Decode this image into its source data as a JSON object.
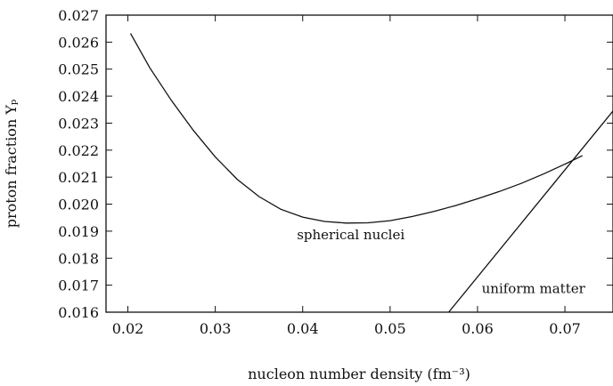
{
  "chart_data": {
    "type": "line",
    "title": "",
    "xlabel": "nucleon number density (fm⁻³)",
    "ylabel": "proton fraction Yₚ",
    "xlim": [
      0.0175,
      0.0755
    ],
    "ylim": [
      0.016,
      0.027
    ],
    "x_ticks": [
      0.02,
      0.03,
      0.04,
      0.05,
      0.06,
      0.07
    ],
    "x_tick_labels": [
      "0.02",
      "0.03",
      "0.04",
      "0.05",
      "0.06",
      "0.07"
    ],
    "y_ticks": [
      0.016,
      0.017,
      0.018,
      0.019,
      0.02,
      0.021,
      0.022,
      0.023,
      0.024,
      0.025,
      0.026,
      0.027
    ],
    "y_tick_labels": [
      "0.016",
      "0.017",
      "0.018",
      "0.019",
      "0.020",
      "0.021",
      "0.022",
      "0.023",
      "0.024",
      "0.025",
      "0.026",
      "0.027"
    ],
    "grid": false,
    "legend": false,
    "series": [
      {
        "label": "spherical nuclei",
        "x": [
          0.0203,
          0.0225,
          0.025,
          0.0275,
          0.03,
          0.0325,
          0.035,
          0.0375,
          0.04,
          0.0425,
          0.045,
          0.0475,
          0.05,
          0.0525,
          0.055,
          0.0575,
          0.06,
          0.0625,
          0.065,
          0.0675,
          0.07,
          0.072
        ],
        "y": [
          0.02632,
          0.02505,
          0.02383,
          0.02273,
          0.02175,
          0.02092,
          0.02028,
          0.01981,
          0.01952,
          0.01936,
          0.0193,
          0.01931,
          0.01939,
          0.01954,
          0.01973,
          0.01995,
          0.0202,
          0.02047,
          0.02077,
          0.02111,
          0.02148,
          0.0218
        ]
      },
      {
        "label": "uniform matter",
        "x": [
          0.0567,
          0.0755
        ],
        "y": [
          0.016,
          0.02345
        ]
      }
    ],
    "annotations": [
      {
        "text": "spherical nuclei",
        "x": 0.0455,
        "y": 0.0187
      },
      {
        "text": "uniform matter",
        "x": 0.0664,
        "y": 0.0167
      }
    ]
  }
}
